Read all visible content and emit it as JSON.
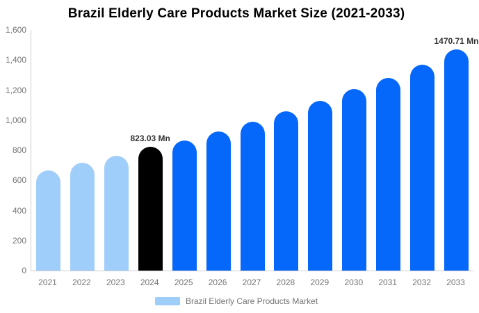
{
  "title": "Brazil Elderly Care Products Market Size (2021-2033)",
  "legend": {
    "label": "Brazil Elderly Care Products Market",
    "swatch_color": "#A0CEFA"
  },
  "colors": {
    "light_blue_bar": "#A0CEFA",
    "blue_bar": "#0667FB",
    "highlight_bar": "#000000",
    "axis_line": "#CCCCCC",
    "axis_text": "#757575",
    "data_label_text": "#333333",
    "title_text": "#000000"
  },
  "y_axis": {
    "tick_labels": [
      "1,600",
      "1,400",
      "1,200",
      "1,000",
      "800",
      "600",
      "400",
      "200",
      "0"
    ],
    "tick_values": [
      1600,
      1400,
      1200,
      1000,
      800,
      600,
      400,
      200,
      0
    ],
    "max": 1600
  },
  "chart_data": {
    "type": "bar",
    "title": "Brazil Elderly Care Products Market Size (2021-2033)",
    "categories": [
      "2021",
      "2022",
      "2023",
      "2024",
      "2025",
      "2026",
      "2027",
      "2028",
      "2029",
      "2030",
      "2031",
      "2032",
      "2033"
    ],
    "values": [
      665,
      715,
      765,
      823.03,
      865,
      925,
      990,
      1060,
      1130,
      1205,
      1280,
      1370,
      1470.71
    ],
    "unit": "Mn",
    "bar_colors": [
      "#A0CEFA",
      "#A0CEFA",
      "#A0CEFA",
      "#000000",
      "#0667FB",
      "#0667FB",
      "#0667FB",
      "#0667FB",
      "#0667FB",
      "#0667FB",
      "#0667FB",
      "#0667FB",
      "#0667FB"
    ],
    "data_labels": [
      {
        "index": 3,
        "text": "823.03 Mn"
      },
      {
        "index": 12,
        "text": "1470.71 Mn"
      }
    ],
    "xlabel": "",
    "ylabel": "",
    "ylim": [
      0,
      1600
    ],
    "grid": false,
    "legend_position": "bottom",
    "legend_entries": [
      "Brazil Elderly Care Products Market"
    ]
  }
}
